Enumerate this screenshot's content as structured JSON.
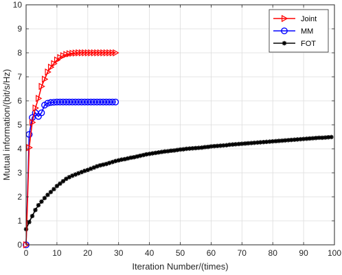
{
  "chart_data": {
    "type": "line",
    "xlabel": "Iteration Number/(times)",
    "ylabel": "Mutual information/(bit/s/Hz)",
    "xlim": [
      0,
      100
    ],
    "ylim": [
      0,
      10
    ],
    "xticks": [
      "0",
      "10",
      "20",
      "30",
      "40",
      "50",
      "60",
      "70",
      "80",
      "90",
      "100"
    ],
    "yticks": [
      "0",
      "1",
      "2",
      "3",
      "4",
      "5",
      "6",
      "7",
      "8",
      "9",
      "10"
    ],
    "grid": true,
    "legend_position": "top-right",
    "series": [
      {
        "name": "Joint",
        "color": "#ff0000",
        "marker": "triangle-right",
        "x": [
          0,
          1,
          2,
          3,
          4,
          5,
          6,
          7,
          8,
          9,
          10,
          11,
          12,
          13,
          14,
          15,
          16,
          17,
          18,
          19,
          20,
          21,
          22,
          23,
          24,
          25,
          26,
          27,
          28,
          29
        ],
        "y": [
          0,
          4.05,
          5.1,
          5.7,
          6.1,
          6.6,
          6.9,
          7.2,
          7.4,
          7.55,
          7.7,
          7.8,
          7.88,
          7.93,
          7.96,
          7.98,
          7.99,
          8.0,
          8.0,
          8.0,
          8.0,
          8.0,
          8.0,
          8.0,
          8.0,
          8.0,
          8.0,
          8.0,
          8.0,
          8.0
        ]
      },
      {
        "name": "MM",
        "color": "#0000ff",
        "marker": "circle",
        "x": [
          0,
          1,
          2,
          3,
          4,
          5,
          6,
          7,
          8,
          9,
          10,
          11,
          12,
          13,
          14,
          15,
          16,
          17,
          18,
          19,
          20,
          21,
          22,
          23,
          24,
          25,
          26,
          27,
          28,
          29
        ],
        "y": [
          0,
          4.6,
          5.3,
          5.5,
          5.35,
          5.5,
          5.82,
          5.9,
          5.93,
          5.94,
          5.95,
          5.95,
          5.95,
          5.95,
          5.95,
          5.95,
          5.95,
          5.95,
          5.95,
          5.95,
          5.95,
          5.95,
          5.95,
          5.95,
          5.95,
          5.95,
          5.95,
          5.95,
          5.95,
          5.95
        ]
      },
      {
        "name": "FOT",
        "color": "#000000",
        "marker": "asterisk",
        "x": [
          0,
          1,
          2,
          3,
          4,
          5,
          6,
          7,
          8,
          9,
          10,
          11,
          12,
          13,
          14,
          15,
          16,
          17,
          18,
          19,
          20,
          21,
          22,
          23,
          24,
          25,
          26,
          27,
          28,
          29,
          30,
          31,
          32,
          33,
          34,
          35,
          36,
          37,
          38,
          39,
          40,
          41,
          42,
          43,
          44,
          45,
          46,
          47,
          48,
          49,
          50,
          51,
          52,
          53,
          54,
          55,
          56,
          57,
          58,
          59,
          60,
          61,
          62,
          63,
          64,
          65,
          66,
          67,
          68,
          69,
          70,
          71,
          72,
          73,
          74,
          75,
          76,
          77,
          78,
          79,
          80,
          81,
          82,
          83,
          84,
          85,
          86,
          87,
          88,
          89,
          90,
          91,
          92,
          93,
          94,
          95,
          96,
          97,
          98,
          99
        ],
        "y": [
          0.65,
          0.95,
          1.2,
          1.45,
          1.65,
          1.8,
          1.95,
          2.08,
          2.2,
          2.32,
          2.45,
          2.55,
          2.65,
          2.75,
          2.82,
          2.88,
          2.93,
          2.98,
          3.03,
          3.08,
          3.12,
          3.17,
          3.22,
          3.27,
          3.31,
          3.34,
          3.37,
          3.41,
          3.45,
          3.49,
          3.52,
          3.55,
          3.57,
          3.6,
          3.63,
          3.65,
          3.68,
          3.71,
          3.74,
          3.77,
          3.79,
          3.81,
          3.83,
          3.85,
          3.87,
          3.89,
          3.9,
          3.92,
          3.93,
          3.95,
          3.97,
          3.98,
          4.0,
          4.01,
          4.02,
          4.03,
          4.04,
          4.05,
          4.07,
          4.08,
          4.1,
          4.11,
          4.12,
          4.13,
          4.14,
          4.15,
          4.17,
          4.18,
          4.19,
          4.2,
          4.21,
          4.22,
          4.23,
          4.24,
          4.25,
          4.26,
          4.27,
          4.28,
          4.29,
          4.3,
          4.31,
          4.32,
          4.33,
          4.34,
          4.35,
          4.36,
          4.37,
          4.38,
          4.39,
          4.4,
          4.41,
          4.42,
          4.43,
          4.44,
          4.45,
          4.46,
          4.46,
          4.47,
          4.48,
          4.49
        ]
      }
    ]
  }
}
